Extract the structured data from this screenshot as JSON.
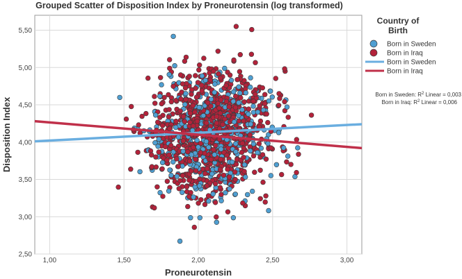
{
  "chart_data": {
    "type": "scatter",
    "title": "Grouped Scatter of Disposition Index by Proneurotensin (log transformed)",
    "xlabel": "Proneurotensin",
    "ylabel": "Disposition Index",
    "xlim": [
      0.9,
      3.1
    ],
    "ylim": [
      2.5,
      5.7
    ],
    "xticks": [
      "1,00",
      "1,50",
      "2,00",
      "2,50",
      "3,00"
    ],
    "yticks": [
      "2,50",
      "3,00",
      "3,50",
      "4,00",
      "4,50",
      "5,00",
      "5,50"
    ],
    "grid": true,
    "legend": {
      "title_line1": "Country of",
      "title_line2": "Birth",
      "placement": "right",
      "entries": [
        {
          "label": "Born in Sweden",
          "kind": "marker",
          "color": "#4f9fd2"
        },
        {
          "label": "Born in Iraq",
          "kind": "marker",
          "color": "#b3223a"
        },
        {
          "label": "Born in Sweden",
          "kind": "line",
          "color": "#6aaee0"
        },
        {
          "label": "Born in Iraq",
          "kind": "line",
          "color": "#c0304a"
        }
      ]
    },
    "r2_labels": [
      {
        "prefix": "Born in Sweden: R",
        "sup": "2",
        "suffix": " Linear = 0,003"
      },
      {
        "prefix": "Born in Iraq: R",
        "sup": "2",
        "suffix": " Linear = 0,006"
      }
    ],
    "series": [
      {
        "name": "Born in Sweden",
        "color": "#4f9fd2",
        "count": 420,
        "x_mean": 2.1,
        "x_sd": 0.2,
        "y_mean": 4.1,
        "y_sd": 0.42,
        "fit_line": {
          "x": [
            0.9,
            3.1
          ],
          "y": [
            4.01,
            4.24
          ]
        },
        "fit_color": "#6aaee0"
      },
      {
        "name": "Born in Iraq",
        "color": "#b3223a",
        "count": 880,
        "x_mean": 2.08,
        "x_sd": 0.2,
        "y_mean": 4.12,
        "y_sd": 0.42,
        "fit_line": {
          "x": [
            0.9,
            3.1
          ],
          "y": [
            4.28,
            3.92
          ]
        },
        "fit_color": "#c0304a"
      }
    ]
  }
}
